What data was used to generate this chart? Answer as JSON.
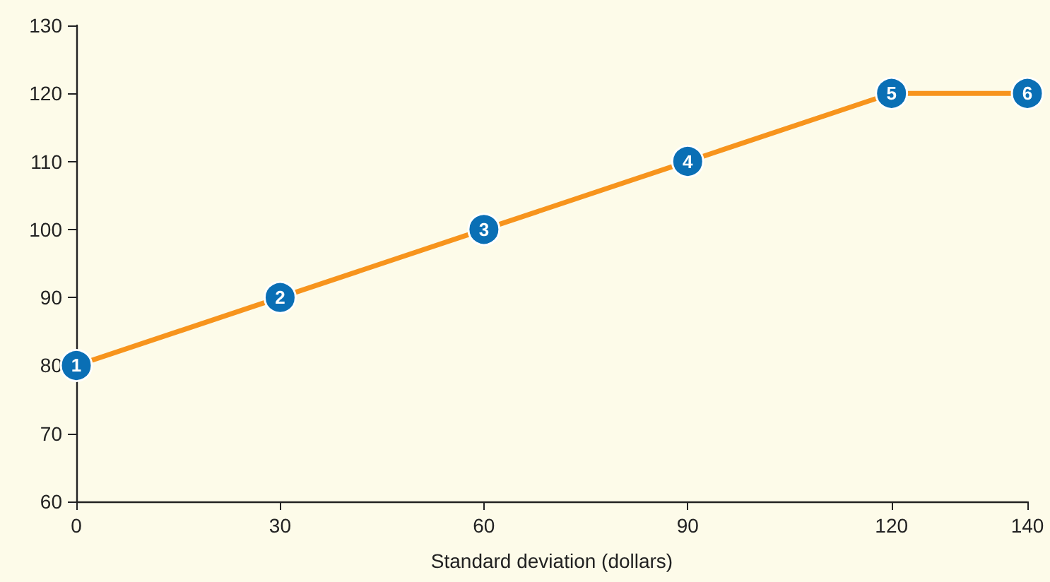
{
  "chart_data": {
    "type": "line",
    "xlabel": "Standard deviation (dollars)",
    "x": [
      0,
      30,
      60,
      90,
      120,
      140
    ],
    "series": [
      {
        "color": "#f7941d",
        "values": [
          80,
          90,
          100,
          110,
          120,
          120
        ]
      }
    ],
    "annotations": [
      {
        "text": "1",
        "x": 0,
        "y": 80
      },
      {
        "text": "2",
        "x": 30,
        "y": 90
      },
      {
        "text": "3",
        "x": 60,
        "y": 100
      },
      {
        "text": "4",
        "x": 90,
        "y": 110
      },
      {
        "text": "5",
        "x": 120,
        "y": 120
      },
      {
        "text": "6",
        "x": 140,
        "y": 120
      }
    ],
    "xlim": [
      0,
      140
    ],
    "xticks": [
      0,
      30,
      60,
      90,
      120,
      140
    ],
    "ylim": [
      60,
      130
    ],
    "yticks": [
      60,
      70,
      80,
      90,
      100,
      110,
      120,
      130
    ],
    "grid": false,
    "marker": "circle",
    "line_style": "solid"
  }
}
